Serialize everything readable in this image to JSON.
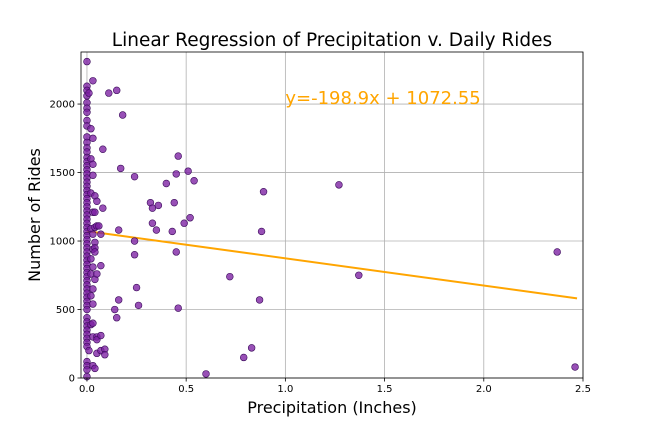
{
  "chart_data": {
    "type": "scatter",
    "title": "Linear Regression of Precipitation v. Daily Rides",
    "xlabel": "Precipitation (Inches)",
    "ylabel": "Number of Rides",
    "xlim": [
      -0.03,
      2.5
    ],
    "ylim": [
      0,
      2380
    ],
    "x_ticks": [
      0.0,
      0.5,
      1.0,
      1.5,
      2.0,
      2.5
    ],
    "x_tick_labels": [
      "0.0",
      "0.5",
      "1.0",
      "1.5",
      "2.0",
      "2.5"
    ],
    "y_ticks": [
      0,
      500,
      1000,
      1500,
      2000
    ],
    "y_tick_labels": [
      "0",
      "500",
      "1000",
      "1500",
      "2000"
    ],
    "grid": true,
    "annotation": {
      "text": "y=-198.9x + 1072.55",
      "x": 1.0,
      "y": 2000,
      "color": "#FFA500"
    },
    "regression": {
      "slope": -198.9,
      "intercept": 1072.55,
      "x_range": [
        0.0,
        2.47
      ],
      "color": "#FFA500"
    },
    "point_color": "#7B1FA2",
    "series": [
      {
        "points": [
          [
            0,
            2310
          ],
          [
            0,
            2130
          ],
          [
            0,
            2100
          ],
          [
            0,
            2060
          ],
          [
            0,
            2010
          ],
          [
            0,
            1970
          ],
          [
            0,
            1940
          ],
          [
            0,
            1880
          ],
          [
            0,
            1840
          ],
          [
            0,
            1760
          ],
          [
            0,
            1720
          ],
          [
            0,
            1680
          ],
          [
            0,
            1650
          ],
          [
            0,
            1610
          ],
          [
            0,
            1580
          ],
          [
            0,
            1550
          ],
          [
            0,
            1520
          ],
          [
            0,
            1490
          ],
          [
            0,
            1460
          ],
          [
            0,
            1430
          ],
          [
            0,
            1400
          ],
          [
            0,
            1370
          ],
          [
            0,
            1340
          ],
          [
            0,
            1310
          ],
          [
            0,
            1280
          ],
          [
            0,
            1250
          ],
          [
            0,
            1220
          ],
          [
            0,
            1190
          ],
          [
            0,
            1160
          ],
          [
            0,
            1130
          ],
          [
            0,
            1100
          ],
          [
            0,
            1070
          ],
          [
            0,
            1040
          ],
          [
            0,
            1010
          ],
          [
            0,
            980
          ],
          [
            0,
            950
          ],
          [
            0,
            920
          ],
          [
            0,
            890
          ],
          [
            0,
            860
          ],
          [
            0,
            830
          ],
          [
            0,
            800
          ],
          [
            0,
            770
          ],
          [
            0,
            740
          ],
          [
            0,
            710
          ],
          [
            0,
            680
          ],
          [
            0,
            650
          ],
          [
            0,
            620
          ],
          [
            0,
            590
          ],
          [
            0,
            560
          ],
          [
            0,
            530
          ],
          [
            0,
            500
          ],
          [
            0,
            440
          ],
          [
            0,
            410
          ],
          [
            0,
            380
          ],
          [
            0,
            350
          ],
          [
            0,
            320
          ],
          [
            0,
            290
          ],
          [
            0,
            260
          ],
          [
            0,
            230
          ],
          [
            0,
            120
          ],
          [
            0,
            90
          ],
          [
            0,
            60
          ],
          [
            0,
            10
          ],
          [
            0.01,
            2080
          ],
          [
            0.02,
            1820
          ],
          [
            0.02,
            1600
          ],
          [
            0.02,
            1350
          ],
          [
            0.02,
            1090
          ],
          [
            0.02,
            870
          ],
          [
            0.02,
            760
          ],
          [
            0.02,
            600
          ],
          [
            0.02,
            390
          ],
          [
            0.01,
            200
          ],
          [
            0.03,
            2170
          ],
          [
            0.03,
            1750
          ],
          [
            0.03,
            1560
          ],
          [
            0.03,
            1480
          ],
          [
            0.03,
            1210
          ],
          [
            0.03,
            1050
          ],
          [
            0.03,
            940
          ],
          [
            0.03,
            810
          ],
          [
            0.03,
            650
          ],
          [
            0.03,
            540
          ],
          [
            0.03,
            400
          ],
          [
            0.03,
            300
          ],
          [
            0.03,
            90
          ],
          [
            0.04,
            1330
          ],
          [
            0.04,
            1210
          ],
          [
            0.04,
            1100
          ],
          [
            0.04,
            990
          ],
          [
            0.04,
            950
          ],
          [
            0.04,
            920
          ],
          [
            0.04,
            720
          ],
          [
            0.04,
            70
          ],
          [
            0.05,
            1290
          ],
          [
            0.05,
            1110
          ],
          [
            0.05,
            760
          ],
          [
            0.05,
            300
          ],
          [
            0.05,
            280
          ],
          [
            0.05,
            180
          ],
          [
            0.06,
            1110
          ],
          [
            0.07,
            1050
          ],
          [
            0.07,
            820
          ],
          [
            0.07,
            310
          ],
          [
            0.07,
            200
          ],
          [
            0.08,
            1240
          ],
          [
            0.08,
            1670
          ],
          [
            0.09,
            210
          ],
          [
            0.09,
            170
          ],
          [
            0.11,
            2080
          ],
          [
            0.15,
            2100
          ],
          [
            0.14,
            500
          ],
          [
            0.15,
            440
          ],
          [
            0.16,
            570
          ],
          [
            0.16,
            1080
          ],
          [
            0.17,
            1530
          ],
          [
            0.18,
            1920
          ],
          [
            0.24,
            1470
          ],
          [
            0.24,
            1000
          ],
          [
            0.24,
            900
          ],
          [
            0.25,
            660
          ],
          [
            0.26,
            530
          ],
          [
            0.32,
            1280
          ],
          [
            0.33,
            1240
          ],
          [
            0.33,
            1130
          ],
          [
            0.35,
            1080
          ],
          [
            0.36,
            1260
          ],
          [
            0.4,
            1420
          ],
          [
            0.43,
            1070
          ],
          [
            0.44,
            1280
          ],
          [
            0.45,
            1490
          ],
          [
            0.45,
            920
          ],
          [
            0.46,
            1620
          ],
          [
            0.46,
            510
          ],
          [
            0.49,
            1130
          ],
          [
            0.51,
            1510
          ],
          [
            0.52,
            1170
          ],
          [
            0.54,
            1440
          ],
          [
            0.6,
            30
          ],
          [
            0.72,
            740
          ],
          [
            0.79,
            150
          ],
          [
            0.83,
            220
          ],
          [
            0.87,
            570
          ],
          [
            0.88,
            1070
          ],
          [
            0.89,
            1360
          ],
          [
            1.27,
            1410
          ],
          [
            1.37,
            750
          ],
          [
            2.37,
            920
          ],
          [
            2.46,
            80
          ]
        ]
      }
    ]
  }
}
